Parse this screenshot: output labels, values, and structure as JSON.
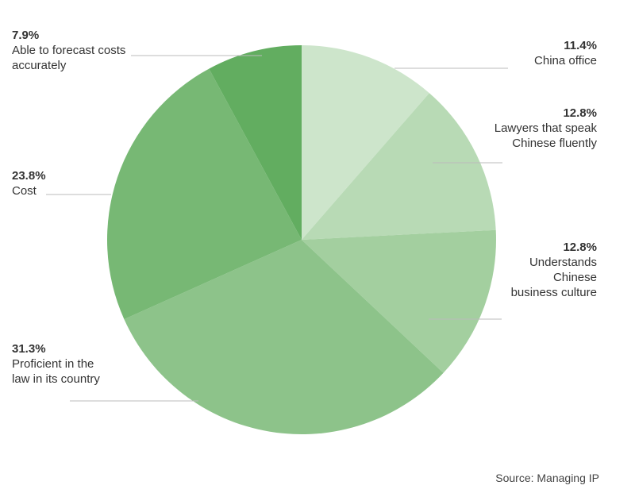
{
  "chart_data": {
    "type": "pie",
    "categories": [
      "China office",
      "Lawyers that speak Chinese fluently",
      "Understands Chinese business culture",
      "Proficient in the law in its country",
      "Cost",
      "Able to forecast costs accurately"
    ],
    "values": [
      11.4,
      12.8,
      12.8,
      31.3,
      23.8,
      7.9
    ],
    "value_labels": [
      "11.4%",
      "12.8%",
      "12.8%",
      "31.3%",
      "23.8%",
      "7.9%"
    ],
    "colors": [
      "#cde5cb",
      "#b8dab5",
      "#a3cf9f",
      "#8dc38a",
      "#77b874",
      "#62ad60"
    ],
    "source": "Source: Managing IP"
  }
}
